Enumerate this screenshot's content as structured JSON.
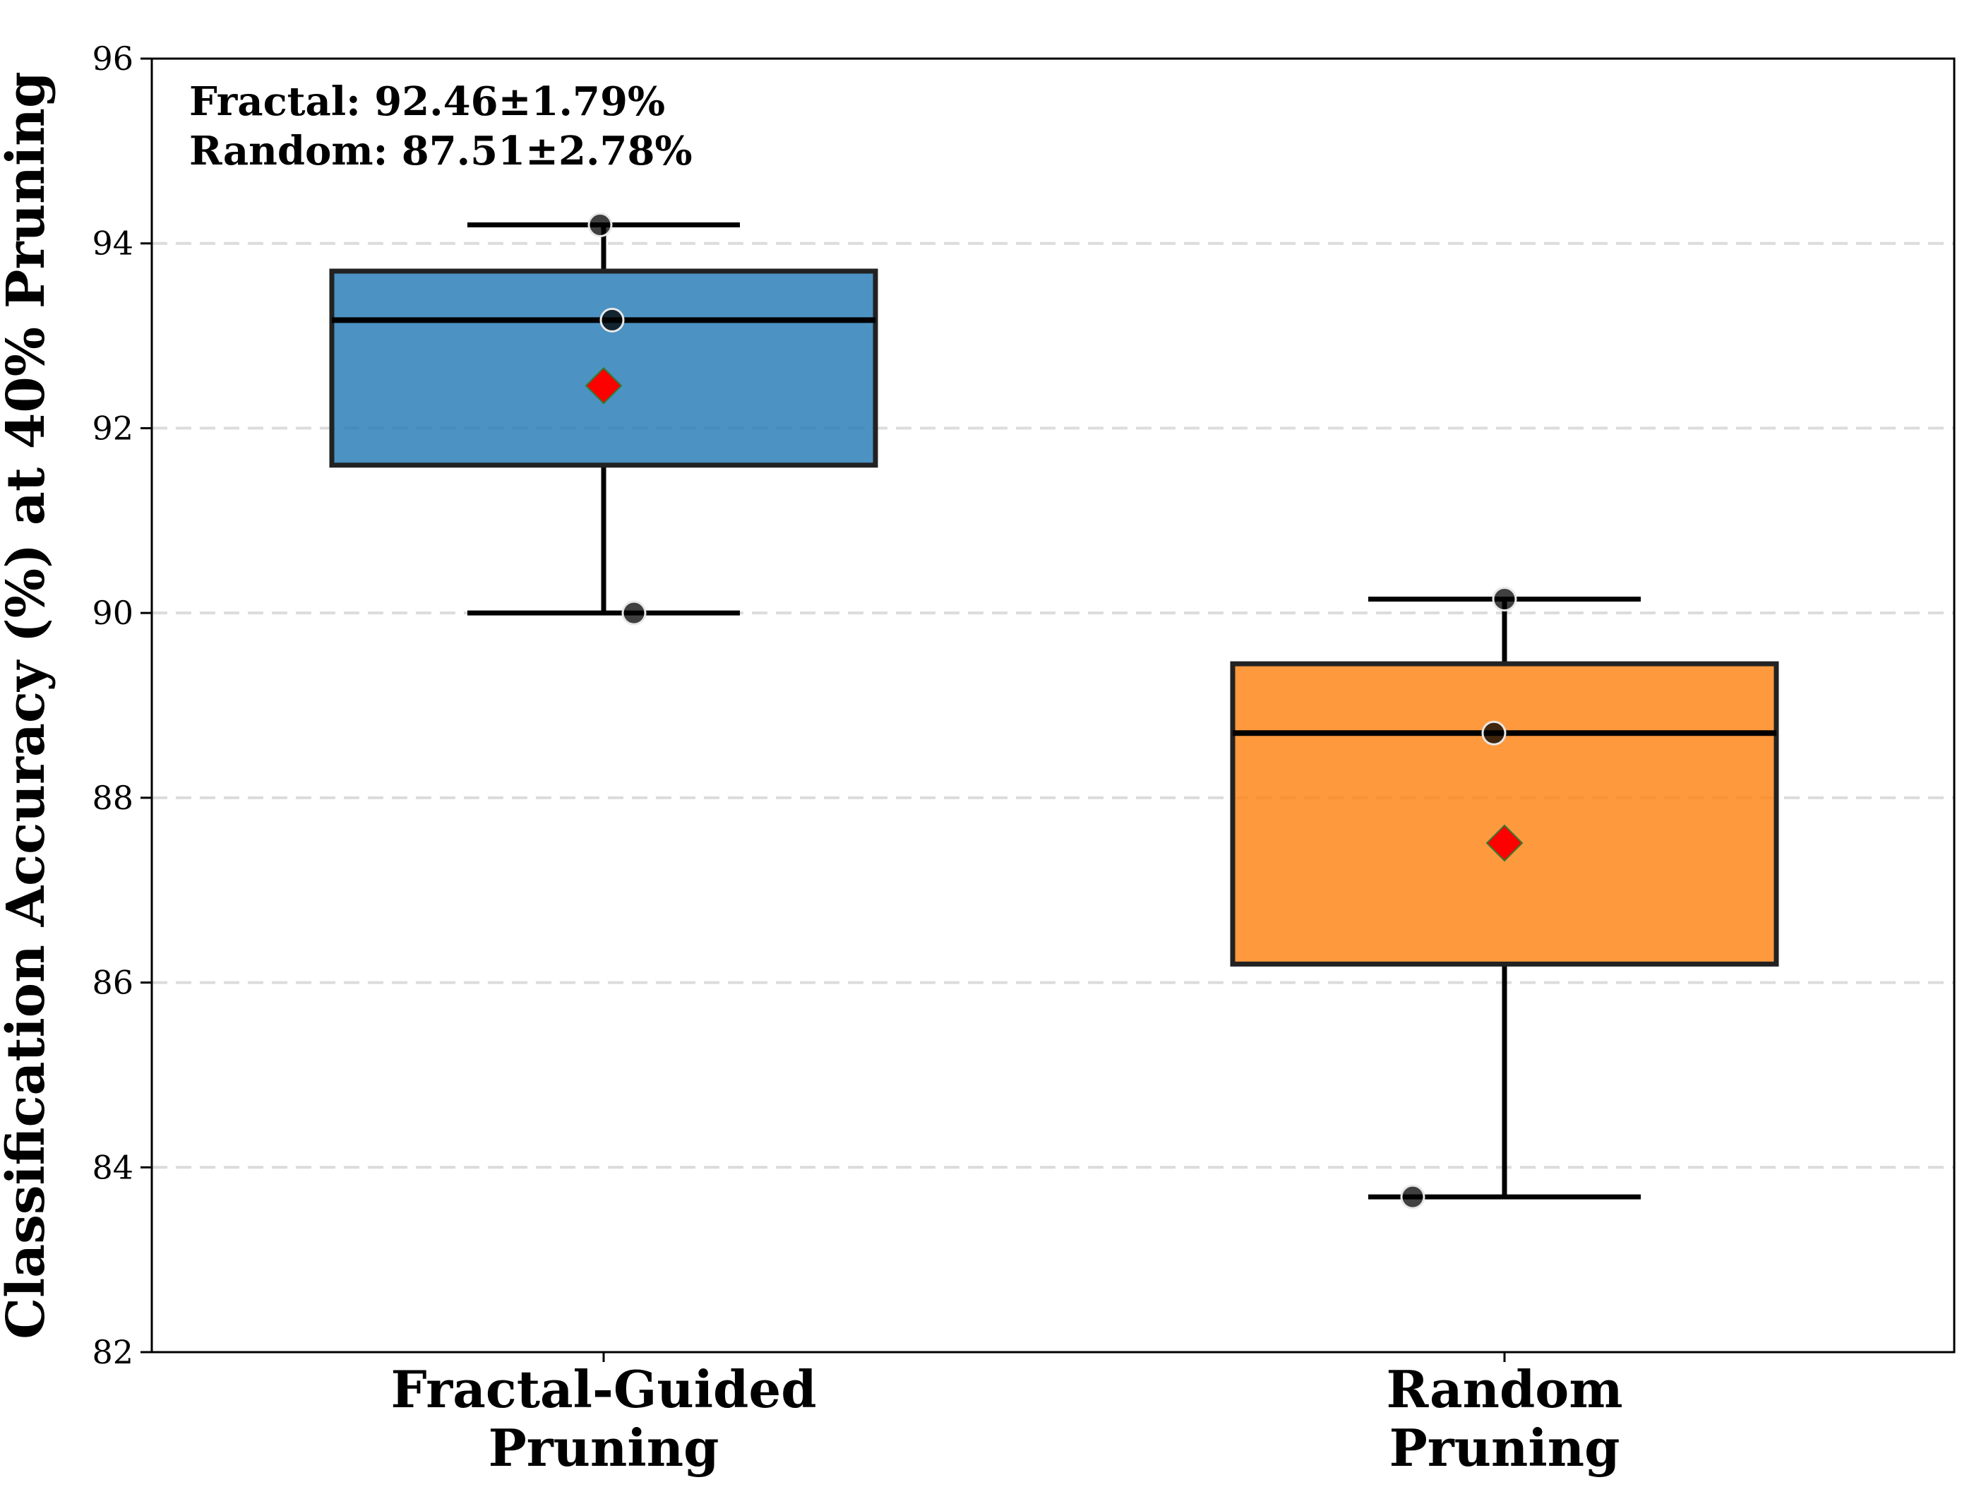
{
  "chart_data": {
    "type": "box",
    "title": "",
    "xlabel": "",
    "ylabel": "Classification Accuracy (%) at 40% Pruning",
    "ylim": [
      82,
      96
    ],
    "yticks": [
      82,
      84,
      86,
      88,
      90,
      92,
      94,
      96
    ],
    "grid": "y-dashed",
    "annotation_lines": [
      "Fractal: 92.46±1.79%",
      "Random: 87.51±2.78%"
    ],
    "series": [
      {
        "name": "Fractal-Guided Pruning",
        "label_lines": [
          "Fractal-Guided",
          "Pruning"
        ],
        "color": "#1f77b4",
        "whisker_low": 90.0,
        "q1": 91.6,
        "median": 93.17,
        "q3": 93.7,
        "whisker_high": 94.2,
        "mean": 92.46,
        "points": [
          94.2,
          93.17,
          90.0
        ]
      },
      {
        "name": "Random Pruning",
        "label_lines": [
          "Random",
          "Pruning"
        ],
        "color": "#ff7f0e",
        "whisker_low": 83.68,
        "q1": 86.2,
        "median": 88.7,
        "q3": 89.45,
        "whisker_high": 90.15,
        "mean": 87.51,
        "points": [
          90.15,
          88.7,
          83.68
        ]
      }
    ],
    "mean_marker_color": "#ff0000",
    "point_color": "#000000"
  }
}
